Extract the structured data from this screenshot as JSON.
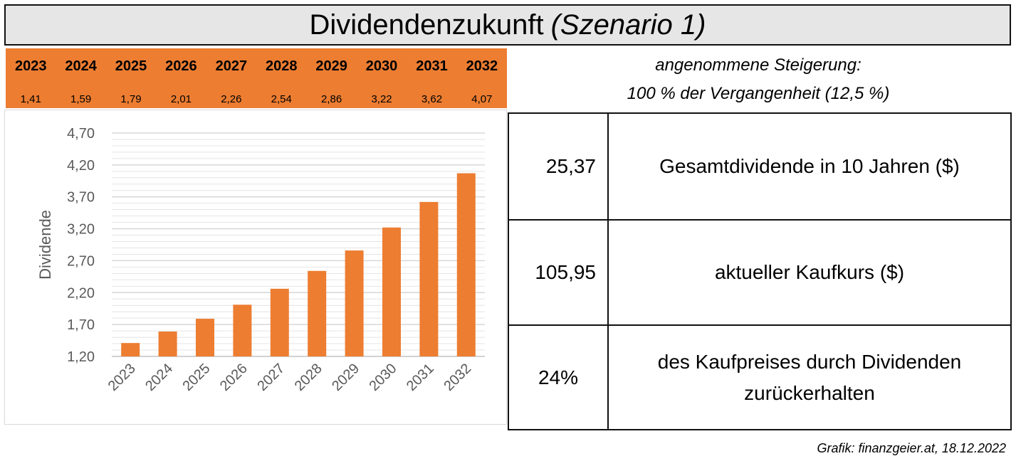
{
  "title": {
    "main": "Dividendenzukunft",
    "emphasis": "(Szenario 1)"
  },
  "year_table": {
    "years": [
      "2023",
      "2024",
      "2025",
      "2026",
      "2027",
      "2028",
      "2029",
      "2030",
      "2031",
      "2032"
    ],
    "values": [
      "1,41",
      "1,59",
      "1,79",
      "2,01",
      "2,26",
      "2,54",
      "2,86",
      "3,22",
      "3,62",
      "4,07"
    ]
  },
  "assumption": {
    "line1": "angenommene Steigerung:",
    "line2": "100 % der Vergangenheit (12,5 %)"
  },
  "stats": [
    {
      "value": "25,37",
      "label": "Gesamtdividende in 10 Jahren ($)"
    },
    {
      "value": "105,95",
      "label": "aktueller Kaufkurs ($)"
    },
    {
      "value": "24%",
      "label": "des Kaufpreises durch Dividenden zurückerhalten"
    }
  ],
  "credit": "Grafik: finanzgeier.at, 18.12.2022",
  "chart_data": {
    "type": "bar",
    "categories": [
      "2023",
      "2024",
      "2025",
      "2026",
      "2027",
      "2028",
      "2029",
      "2030",
      "2031",
      "2032"
    ],
    "values": [
      1.41,
      1.59,
      1.79,
      2.01,
      2.26,
      2.54,
      2.86,
      3.22,
      3.62,
      4.07
    ],
    "ylabel": "Dividende",
    "ylim": [
      1.2,
      4.7
    ],
    "yticks": [
      "1,20",
      "1,70",
      "2,20",
      "2,70",
      "3,20",
      "3,70",
      "4,20",
      "4,70"
    ],
    "ytick_values": [
      1.2,
      1.7,
      2.2,
      2.7,
      3.2,
      3.7,
      4.2,
      4.7
    ],
    "grid": true,
    "bar_color": "#ed7d31",
    "grid_color": "#e4e4e4"
  }
}
